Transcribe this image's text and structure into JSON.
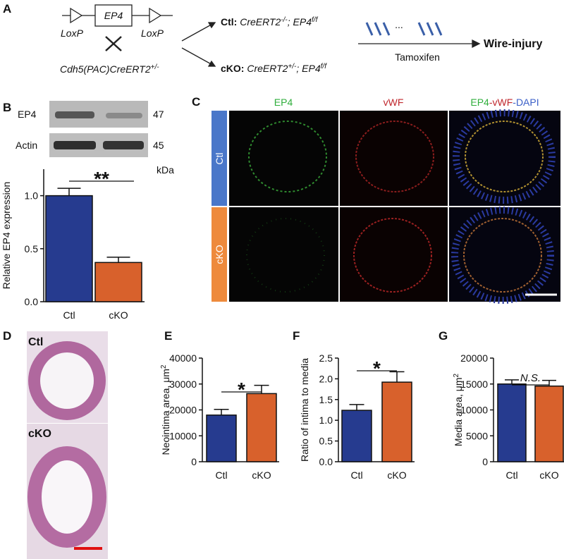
{
  "panels": {
    "a": "A",
    "b": "B",
    "c": "C",
    "d": "D",
    "e": "E",
    "f": "F",
    "g": "G"
  },
  "scheme": {
    "gene": "EP4",
    "loxp": [
      "LoxP",
      "LoxP"
    ],
    "cross": "Cdh5(PAC)CreERT2",
    "cross_sup": "+/-",
    "groups": [
      {
        "label": "Ctl:",
        "genotype": "CreERT2",
        "sup": "-/-",
        "sep": "; EP4",
        "sup2": "f/f"
      },
      {
        "label": "cKO:",
        "genotype": "CreERT2",
        "sup": "+/-",
        "sep": "; EP4",
        "sup2": "f/f"
      }
    ],
    "injections": "...",
    "drug": "Tamoxifen",
    "outcome": "Wire-injury"
  },
  "blot": {
    "bands": [
      "EP4",
      "Actin"
    ],
    "sizes": [
      "47",
      "45"
    ],
    "unit": "kDa"
  },
  "staining": {
    "columns": [
      "EP4",
      "vWF"
    ],
    "merge": [
      "EP4",
      "-",
      "vWF",
      "-",
      "DAPI"
    ],
    "rows": [
      "Ctl",
      "cKO"
    ]
  },
  "histology": {
    "rows": [
      "Ctl",
      "cKO"
    ]
  },
  "chart_data": [
    {
      "type": "bar",
      "ylabel": "Relative EP4 expression",
      "categories": [
        "Ctl",
        "cKO"
      ],
      "values": [
        1.0,
        0.37
      ],
      "errors": [
        0.07,
        0.05
      ],
      "colors": [
        "#263b8f",
        "#d8612c"
      ],
      "ylim": [
        0,
        1.25
      ],
      "yticks": [
        {
          "value": 0,
          "label": "0.0"
        },
        0.5,
        {
          "value": 1,
          "label": "1.0"
        }
      ],
      "significance": "**"
    },
    {
      "type": "bar",
      "ylabel": "Neointima area, μm",
      "ylabel_sup": "2",
      "categories": [
        "Ctl",
        "cKO"
      ],
      "values": [
        18000,
        26300
      ],
      "errors": [
        2200,
        3200
      ],
      "colors": [
        "#263b8f",
        "#d8612c"
      ],
      "ylim": [
        0,
        40000
      ],
      "yticks": [
        0,
        10000,
        20000,
        30000,
        40000
      ],
      "significance": "*"
    },
    {
      "type": "bar",
      "ylabel": "Ratio of intima to media",
      "categories": [
        "Ctl",
        "cKO"
      ],
      "values": [
        1.24,
        1.92
      ],
      "errors": [
        0.14,
        0.25
      ],
      "colors": [
        "#263b8f",
        "#d8612c"
      ],
      "ylim": [
        0,
        2.5
      ],
      "yticks": [
        {
          "value": 0,
          "label": "0.0"
        },
        0.5,
        {
          "value": 1,
          "label": "1.0"
        },
        1.5,
        {
          "value": 2,
          "label": "2.0"
        },
        2.5
      ],
      "significance": "*"
    },
    {
      "type": "bar",
      "ylabel": "Media area, μm",
      "ylabel_sup": "2",
      "categories": [
        "Ctl",
        "cKO"
      ],
      "values": [
        15000,
        14600
      ],
      "errors": [
        800,
        1100
      ],
      "colors": [
        "#263b8f",
        "#d8612c"
      ],
      "ylim": [
        0,
        20000
      ],
      "yticks": [
        0,
        5000,
        10000,
        15000,
        20000
      ],
      "significance": "N.S.",
      "significance_italic": true
    }
  ]
}
